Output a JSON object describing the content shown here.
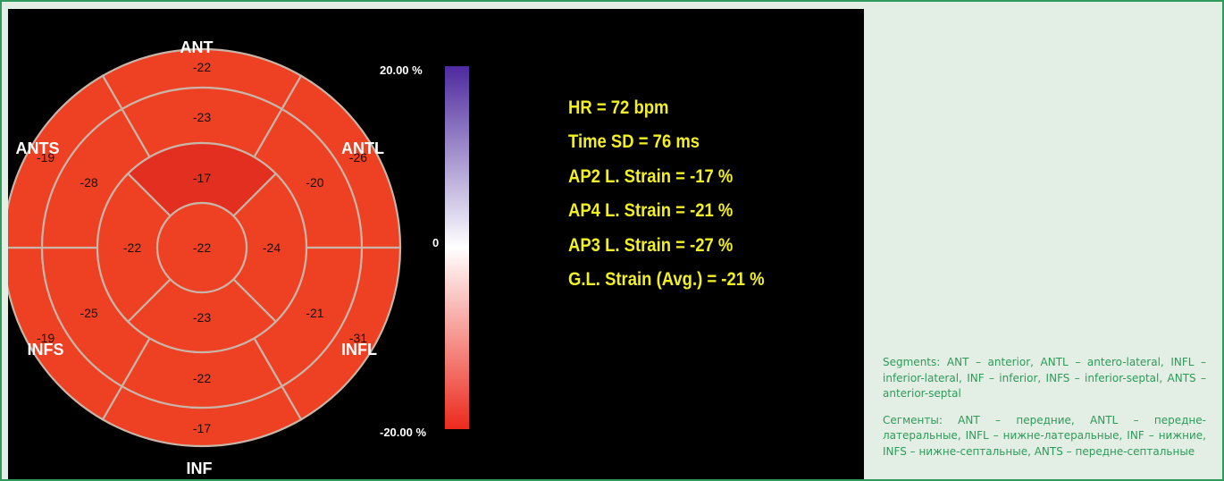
{
  "bullseye": {
    "labels": {
      "ant": "ANT",
      "antl": "ANTL",
      "infl": "INFL",
      "inf": "INF",
      "infs": "INFS",
      "ants": "ANTS"
    },
    "segments": {
      "basal": [
        "-22",
        "-26",
        "-31",
        "-17",
        "-19",
        "-19"
      ],
      "mid": [
        "-23",
        "-20",
        "-21",
        "-22",
        "-25",
        "-28"
      ],
      "apical": [
        "-17",
        "-24",
        "-23",
        "-22"
      ],
      "apex": "-22"
    },
    "colorbar": {
      "max_label": "20.00 %",
      "zero_label": "0",
      "min_label": "-20.00 %"
    },
    "colors": {
      "segment_fill": "#ee4022",
      "highlight_fill": "#e32f1f",
      "segment_border": "#c9b4a8",
      "scale_top": "#4d2a9e",
      "scale_mid": "#ffffff",
      "scale_bottom": "#ec2a1d",
      "text_yellow": "#f2ef22"
    }
  },
  "stats": [
    "HR = 72 bpm",
    "Time SD = 76 ms",
    "AP2 L. Strain = -17 %",
    "AP4 L. Strain = -21 %",
    "AP3 L. Strain = -27 %",
    "G.L. Strain (Avg.) = -21 %"
  ],
  "legend": {
    "english": "Segments: ANT – anterior, ANTL – antero-lateral, INFL – inferior-lateral, INF – inferior, INFS – inferior-septal, ANTS – anterior-septal",
    "russian": "Сегменты: ANT – передние, ANTL – передне-латеральные, INFL – нижне-латеральные, INF – нижние, INFS – нижне-септальные, ANTS – передне-септальные"
  }
}
